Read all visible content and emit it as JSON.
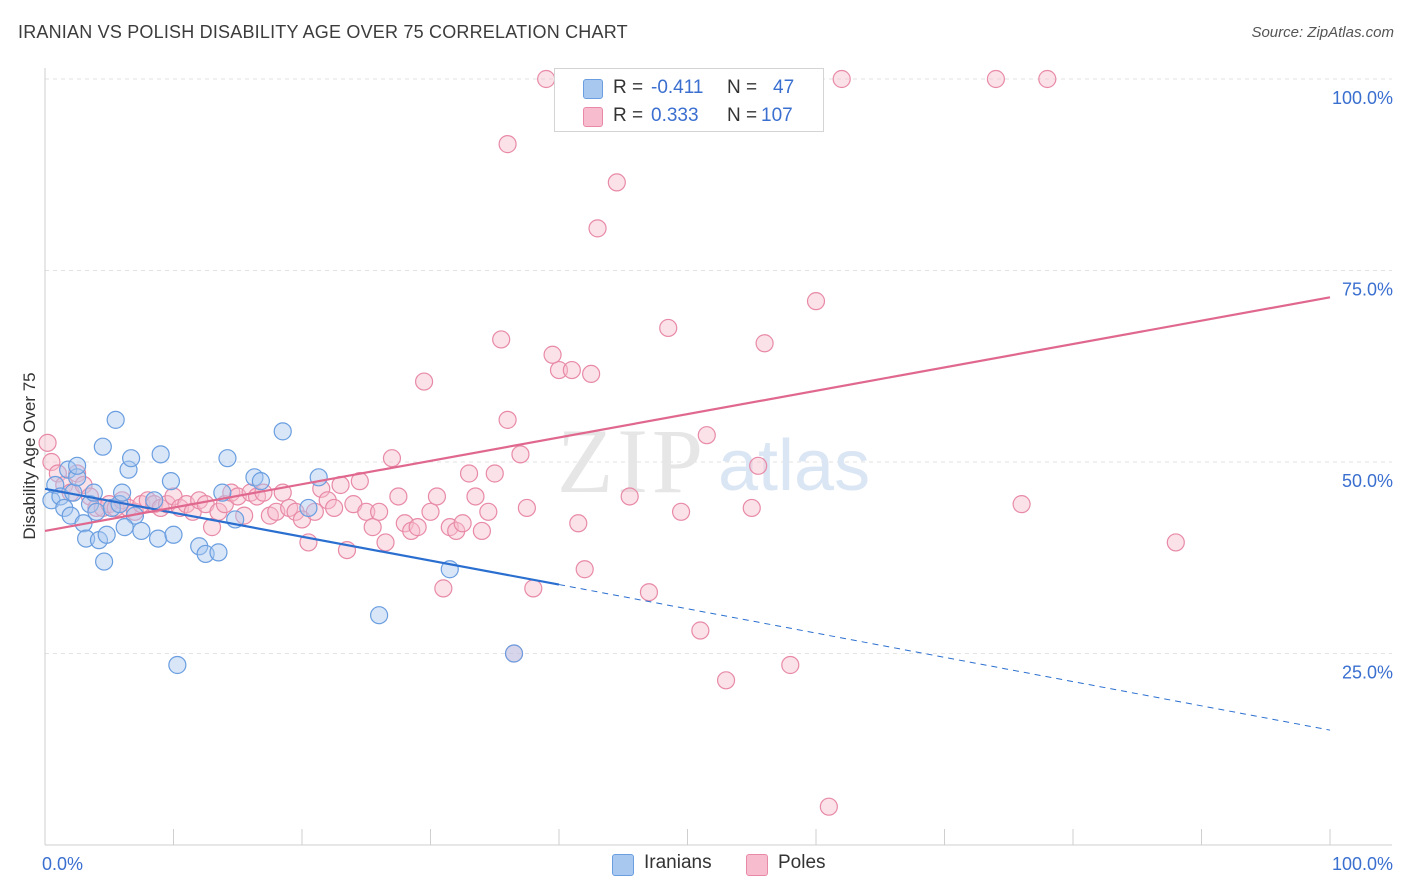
{
  "title": "IRANIAN VS POLISH DISABILITY AGE OVER 75 CORRELATION CHART",
  "source": "Source: ZipAtlas.com",
  "watermark": {
    "zip": "ZIP",
    "atlas": "atlas"
  },
  "legend_top": {
    "rows": [
      {
        "r_label": "R =",
        "r_value": "-0.411",
        "n_label": "N =",
        "n_value": "47",
        "color": "#a9c8f0",
        "border": "#6a9ee0"
      },
      {
        "r_label": "R =",
        "r_value": "0.333",
        "n_label": "N =",
        "n_value": "107",
        "color": "#f7bccd",
        "border": "#e88aa7"
      }
    ]
  },
  "legend_bottom": {
    "items": [
      {
        "label": "Iranians",
        "color": "#a9c8f0",
        "border": "#6a9ee0"
      },
      {
        "label": "Poles",
        "color": "#f7bccd",
        "border": "#e88aa7"
      }
    ]
  },
  "chart_data": {
    "type": "scatter",
    "title": "IRANIAN VS POLISH DISABILITY AGE OVER 75 CORRELATION CHART",
    "xlabel": "",
    "ylabel": "Disability Age Over 75",
    "xlim": [
      0,
      100
    ],
    "ylim": [
      0,
      100
    ],
    "x_tick_labels": [
      "0.0%",
      "100.0%"
    ],
    "y_tick_labels": [
      "25.0%",
      "50.0%",
      "75.0%",
      "100.0%"
    ],
    "y_ticks": [
      25,
      50,
      75,
      100
    ],
    "grid": true,
    "colors": {
      "iranians": "#6a9ee0",
      "iranians_line": "#2a6fd0",
      "poles": "#e88aa7",
      "poles_line": "#e0688e",
      "axis_text": "#3a6fd0"
    },
    "series": [
      {
        "name": "Iranians",
        "r": -0.411,
        "n": 47,
        "trend": {
          "x0": 0,
          "y0": 46.5,
          "x1": 40,
          "y1": 34.0,
          "dash_x1": 100,
          "dash_y1": 15.0
        },
        "points": [
          [
            0.5,
            45.0
          ],
          [
            0.8,
            47.0
          ],
          [
            1.2,
            45.5
          ],
          [
            1.5,
            44.0
          ],
          [
            1.8,
            49.0
          ],
          [
            2.0,
            43.0
          ],
          [
            2.2,
            46.0
          ],
          [
            2.5,
            48.0
          ],
          [
            2.5,
            49.5
          ],
          [
            3.0,
            42.0
          ],
          [
            3.2,
            40.0
          ],
          [
            3.5,
            44.5
          ],
          [
            3.8,
            46.0
          ],
          [
            4.0,
            43.5
          ],
          [
            4.2,
            39.8
          ],
          [
            4.5,
            52.0
          ],
          [
            4.6,
            37.0
          ],
          [
            4.8,
            40.5
          ],
          [
            5.2,
            44.0
          ],
          [
            5.5,
            55.5
          ],
          [
            5.8,
            44.5
          ],
          [
            6.0,
            46.0
          ],
          [
            6.5,
            49.0
          ],
          [
            6.7,
            50.5
          ],
          [
            7.0,
            43.0
          ],
          [
            7.5,
            41.0
          ],
          [
            8.5,
            45.0
          ],
          [
            8.8,
            40.0
          ],
          [
            9.0,
            51.0
          ],
          [
            9.8,
            47.5
          ],
          [
            10.0,
            40.5
          ],
          [
            10.3,
            23.5
          ],
          [
            12.0,
            39.0
          ],
          [
            12.5,
            38.0
          ],
          [
            13.5,
            38.2
          ],
          [
            13.8,
            46.0
          ],
          [
            14.2,
            50.5
          ],
          [
            14.8,
            42.5
          ],
          [
            16.3,
            48.0
          ],
          [
            16.8,
            47.5
          ],
          [
            18.5,
            54.0
          ],
          [
            20.5,
            44.0
          ],
          [
            21.3,
            48.0
          ],
          [
            26.0,
            30.0
          ],
          [
            31.5,
            36.0
          ],
          [
            36.5,
            25.0
          ],
          [
            6.2,
            41.5
          ]
        ]
      },
      {
        "name": "Poles",
        "r": 0.333,
        "n": 107,
        "trend": {
          "x0": 0,
          "y0": 41.0,
          "x1": 100,
          "y1": 71.5
        },
        "points": [
          [
            0.2,
            52.5
          ],
          [
            0.5,
            50.0
          ],
          [
            1.0,
            48.5
          ],
          [
            1.5,
            47.0
          ],
          [
            2.0,
            46.0
          ],
          [
            2.5,
            48.5
          ],
          [
            3.0,
            47.0
          ],
          [
            3.5,
            45.5
          ],
          [
            4.0,
            44.0
          ],
          [
            4.5,
            44.0
          ],
          [
            5.0,
            44.5
          ],
          [
            5.5,
            44.0
          ],
          [
            6.0,
            45.0
          ],
          [
            6.5,
            44.0
          ],
          [
            7.0,
            43.5
          ],
          [
            7.5,
            44.5
          ],
          [
            8.0,
            45.0
          ],
          [
            8.5,
            44.5
          ],
          [
            9.0,
            44.0
          ],
          [
            9.5,
            44.5
          ],
          [
            10.0,
            45.5
          ],
          [
            10.5,
            44.0
          ],
          [
            11.0,
            44.5
          ],
          [
            11.5,
            43.5
          ],
          [
            12.0,
            45.0
          ],
          [
            12.5,
            44.5
          ],
          [
            13.0,
            41.5
          ],
          [
            13.5,
            43.5
          ],
          [
            14.0,
            44.5
          ],
          [
            14.5,
            46.0
          ],
          [
            15.0,
            45.5
          ],
          [
            15.5,
            43.0
          ],
          [
            16.0,
            46.0
          ],
          [
            16.5,
            45.5
          ],
          [
            17.0,
            46.0
          ],
          [
            17.5,
            43.0
          ],
          [
            18.0,
            43.5
          ],
          [
            18.5,
            46.0
          ],
          [
            19.0,
            44.0
          ],
          [
            19.5,
            43.5
          ],
          [
            20.0,
            42.5
          ],
          [
            20.5,
            39.5
          ],
          [
            21.0,
            43.5
          ],
          [
            21.5,
            46.5
          ],
          [
            22.0,
            45.0
          ],
          [
            22.5,
            44.0
          ],
          [
            23.0,
            47.0
          ],
          [
            23.5,
            38.5
          ],
          [
            24.0,
            44.5
          ],
          [
            24.5,
            47.5
          ],
          [
            25.0,
            43.5
          ],
          [
            25.5,
            41.5
          ],
          [
            26.0,
            43.5
          ],
          [
            26.5,
            39.5
          ],
          [
            27.0,
            50.5
          ],
          [
            27.5,
            45.5
          ],
          [
            28.0,
            42.0
          ],
          [
            28.5,
            41.0
          ],
          [
            29.0,
            41.5
          ],
          [
            29.5,
            60.5
          ],
          [
            30.0,
            43.5
          ],
          [
            30.5,
            45.5
          ],
          [
            31.0,
            33.5
          ],
          [
            31.5,
            41.5
          ],
          [
            32.0,
            41.0
          ],
          [
            32.5,
            42.0
          ],
          [
            33.0,
            48.5
          ],
          [
            33.5,
            45.5
          ],
          [
            34.0,
            41.0
          ],
          [
            34.5,
            43.5
          ],
          [
            35.0,
            48.5
          ],
          [
            35.5,
            66.0
          ],
          [
            36.0,
            55.5
          ],
          [
            36.5,
            25.0
          ],
          [
            37.0,
            51.0
          ],
          [
            37.5,
            44.0
          ],
          [
            38.0,
            33.5
          ],
          [
            39.0,
            100.0
          ],
          [
            40.0,
            62.0
          ],
          [
            39.5,
            64.0
          ],
          [
            41.0,
            62.0
          ],
          [
            41.5,
            42.0
          ],
          [
            42.0,
            36.0
          ],
          [
            42.5,
            61.5
          ],
          [
            43.0,
            80.5
          ],
          [
            44.5,
            86.5
          ],
          [
            45.5,
            45.5
          ],
          [
            46.5,
            100.0
          ],
          [
            47.0,
            33.0
          ],
          [
            47.5,
            100.0
          ],
          [
            48.5,
            67.5
          ],
          [
            49.5,
            43.5
          ],
          [
            51.0,
            28.0
          ],
          [
            51.5,
            53.5
          ],
          [
            53.0,
            21.5
          ],
          [
            55.0,
            44.0
          ],
          [
            55.5,
            49.5
          ],
          [
            56.0,
            65.5
          ],
          [
            58.0,
            23.5
          ],
          [
            60.0,
            71.0
          ],
          [
            61.0,
            5.0
          ],
          [
            62.0,
            100.0
          ],
          [
            74.0,
            100.0
          ],
          [
            76.0,
            44.5
          ],
          [
            78.0,
            100.0
          ],
          [
            88.0,
            39.5
          ],
          [
            36.0,
            91.5
          ]
        ]
      }
    ]
  }
}
